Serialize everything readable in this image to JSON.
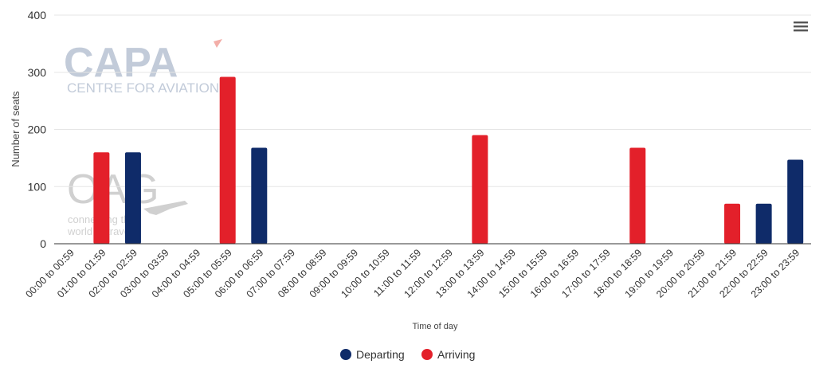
{
  "chart_data": {
    "type": "bar",
    "categories": [
      "00:00 to 00:59",
      "01:00 to 01:59",
      "02:00 to 02:59",
      "03:00 to 03:59",
      "04:00 to 04:59",
      "05:00 to 05:59",
      "06:00 to 06:59",
      "07:00 to 07:59",
      "08:00 to 08:59",
      "09:00 to 09:59",
      "10:00 to 10:59",
      "11:00 to 11:59",
      "12:00 to 12:59",
      "13:00 to 13:59",
      "14:00 to 14:59",
      "15:00 to 15:59",
      "16:00 to 16:59",
      "17:00 to 17:59",
      "18:00 to 18:59",
      "19:00 to 19:59",
      "20:00 to 20:59",
      "21:00 to 21:59",
      "22:00 to 22:59",
      "23:00 to 23:59"
    ],
    "series": [
      {
        "name": "Arriving",
        "color": "#e3202a",
        "values": [
          0,
          160,
          0,
          0,
          0,
          292,
          0,
          0,
          0,
          0,
          0,
          0,
          0,
          190,
          0,
          0,
          0,
          0,
          168,
          0,
          0,
          70,
          0,
          0
        ]
      },
      {
        "name": "Departing",
        "color": "#0f2b69",
        "values": [
          0,
          0,
          160,
          0,
          0,
          0,
          168,
          0,
          0,
          0,
          0,
          0,
          0,
          0,
          0,
          0,
          0,
          0,
          0,
          0,
          0,
          0,
          70,
          147
        ]
      }
    ],
    "ylabel": "Number of seats",
    "xlabel": "Time of day",
    "ylim": [
      0,
      400
    ],
    "yticks": [
      0,
      100,
      200,
      300,
      400
    ],
    "grid": true,
    "legend_position": "bottom-center"
  },
  "legend": [
    {
      "label": "Departing",
      "color": "#0f2b69"
    },
    {
      "label": "Arriving",
      "color": "#e3202a"
    }
  ],
  "watermark": {
    "capa_logo": "CAPA",
    "capa_sub": "CENTRE FOR AVIATION",
    "oag_logo": "OAG",
    "oag_tag1": "connecting the",
    "oag_tag2": "world of travel"
  },
  "menu_icon": "hamburger-menu-icon"
}
